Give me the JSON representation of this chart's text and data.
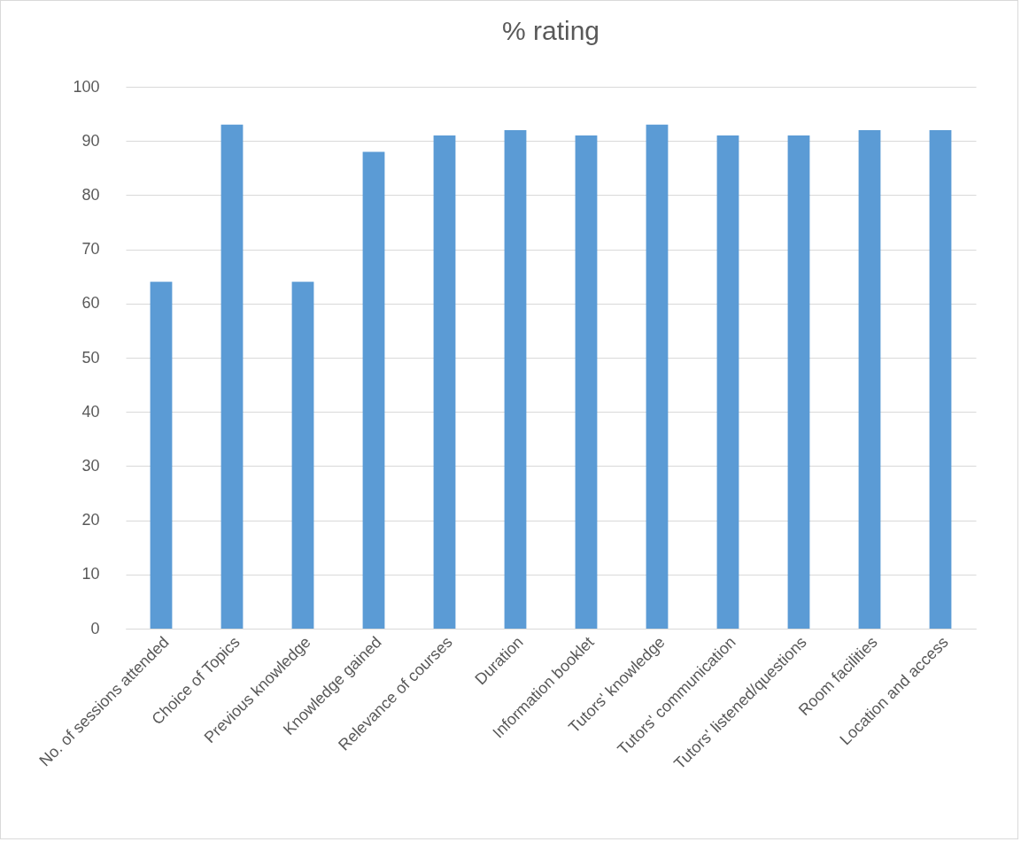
{
  "chart_data": {
    "type": "bar",
    "title": "% rating",
    "categories": [
      "No. of sessions attended",
      "Choice of Topics",
      "Previous knowledge",
      "Knowledge gained",
      "Relevance of courses",
      "Duration",
      "Information booklet",
      "Tutors' knowledge",
      "Tutors' communication",
      "Tutors' listened/questions",
      "Room facilities",
      "Location and access"
    ],
    "values": [
      64,
      93,
      64,
      88,
      91,
      92,
      91,
      93,
      91,
      91,
      92,
      92
    ],
    "color": "#5b9bd5",
    "ylim": [
      0,
      100
    ],
    "yticks": [
      0,
      10,
      20,
      30,
      40,
      50,
      60,
      70,
      80,
      90,
      100
    ],
    "grid": "y"
  }
}
